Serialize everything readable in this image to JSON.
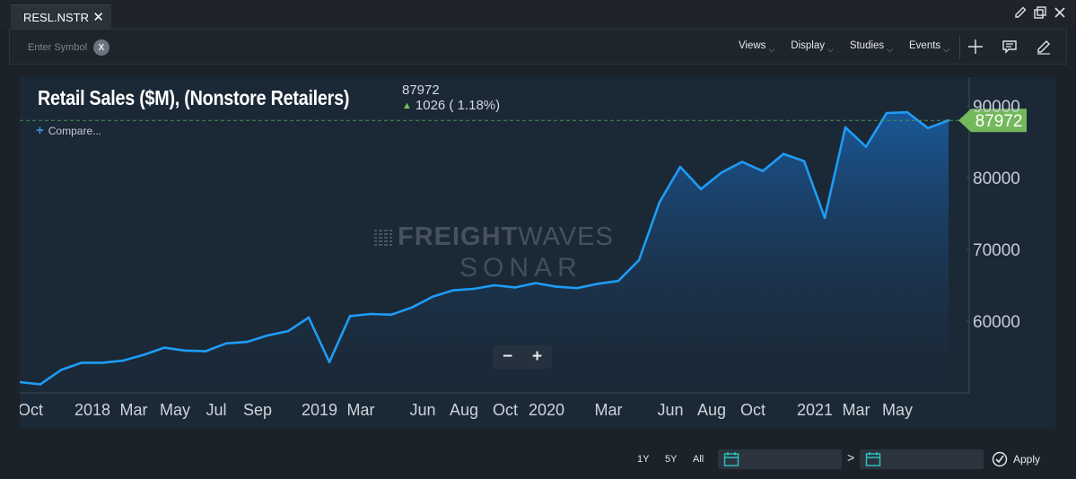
{
  "tab": {
    "label": "RESL.NSTR"
  },
  "toolbar": {
    "symbol_placeholder": "Enter Symbol",
    "clear_label": "X",
    "menus": [
      {
        "label": "Views"
      },
      {
        "label": "Display"
      },
      {
        "label": "Studies"
      },
      {
        "label": "Events"
      }
    ]
  },
  "chart": {
    "title": "Retail Sales ($M), (Nonstore Retailers)",
    "last_value": "87972",
    "change": "1026 ( 1.18%)",
    "compare_label": "Compare...",
    "price_tag": "87972",
    "watermark_line1_bold": "FREIGHT",
    "watermark_line1_thin": "WAVES",
    "watermark_line2": "SONAR",
    "zoom_out": "−",
    "zoom_in": "+",
    "colors": {
      "line": "#1e9cf5",
      "tag": "#74b85c",
      "up": "#78c257",
      "panel": "#1b2836"
    }
  },
  "chart_data": {
    "type": "area",
    "series": [
      {
        "values": [
          51500,
          51200,
          53200,
          54200,
          54200,
          54500,
          55300,
          56300,
          55900,
          55800,
          56900,
          57100,
          58000,
          58600,
          60500,
          54300,
          60700,
          61000,
          60900,
          61900,
          63400,
          64300,
          64500,
          65000,
          64700,
          65300,
          64800,
          64600,
          65200,
          65600,
          68500,
          76600,
          81500,
          78400,
          80700,
          82200,
          80900,
          83300,
          82300,
          74400,
          87000,
          84300,
          89000,
          89100,
          86900,
          87972
        ]
      }
    ],
    "x_tick_labels": [
      "Oct",
      "2018",
      "Mar",
      "May",
      "Jul",
      "Sep",
      "2019",
      "Mar",
      "Jun",
      "Aug",
      "Oct",
      "2020",
      "Mar",
      "Jun",
      "Aug",
      "Oct",
      "2021",
      "Mar",
      "May"
    ],
    "y_tick_labels": [
      "60000",
      "70000",
      "80000",
      "90000"
    ],
    "ylim": [
      50000,
      92000
    ]
  },
  "footer": {
    "ranges": [
      "1Y",
      "5Y",
      "All"
    ],
    "date_arrow": ">",
    "apply_label": "Apply"
  }
}
